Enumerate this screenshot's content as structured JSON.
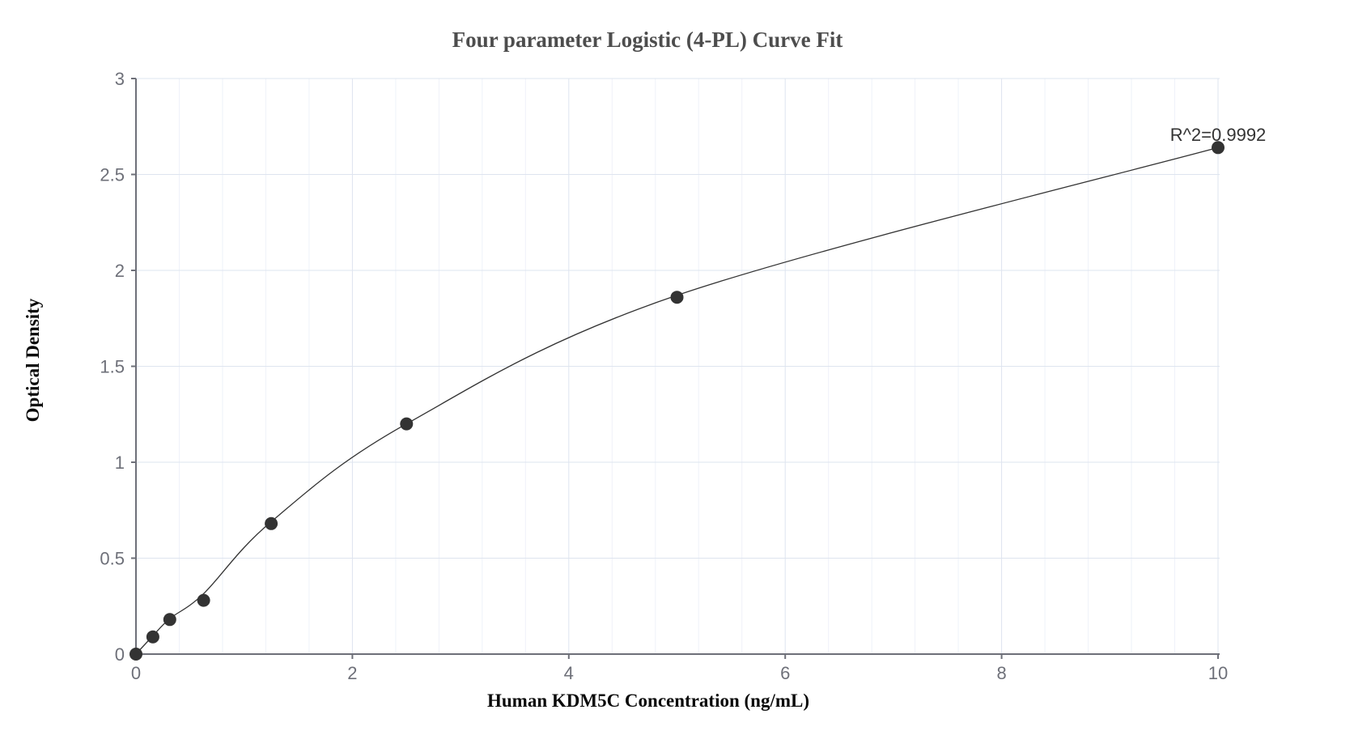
{
  "chart_data": {
    "type": "scatter",
    "title": "Four parameter Logistic (4-PL) Curve Fit",
    "xlabel": "Human KDM5C Concentration (ng/mL)",
    "ylabel": "Optical Density",
    "annotation": "R^2=0.9992",
    "x_ticks": [
      0,
      2,
      4,
      6,
      8,
      10
    ],
    "y_ticks": [
      0,
      0.5,
      1,
      1.5,
      2,
      2.5,
      3
    ],
    "xlim": [
      0,
      10
    ],
    "ylim": [
      0,
      3
    ],
    "grid": true,
    "minor_x_step": 0.4,
    "legend_position": "none",
    "points": [
      {
        "x": 0,
        "y": 0
      },
      {
        "x": 0.156,
        "y": 0.09
      },
      {
        "x": 0.3125,
        "y": 0.18
      },
      {
        "x": 0.625,
        "y": 0.28
      },
      {
        "x": 1.25,
        "y": 0.68
      },
      {
        "x": 2.5,
        "y": 1.2
      },
      {
        "x": 5,
        "y": 1.86
      },
      {
        "x": 10,
        "y": 2.64
      }
    ],
    "curve_anchors": [
      {
        "x": 0,
        "y": 0
      },
      {
        "x": 0.156,
        "y": 0.095
      },
      {
        "x": 0.3125,
        "y": 0.185
      },
      {
        "x": 0.625,
        "y": 0.315
      },
      {
        "x": 1.25,
        "y": 0.69
      },
      {
        "x": 2.5,
        "y": 1.2
      },
      {
        "x": 5,
        "y": 1.87
      },
      {
        "x": 10,
        "y": 2.64
      }
    ],
    "colors": {
      "point": "#333333",
      "curve": "#333333",
      "axis": "#6E7079",
      "tick_label": "#6E7079",
      "grid_major": "#DEE4EF",
      "grid_minor": "#EEF2F9",
      "title": "#4D4D4D",
      "axis_label": "#0A0A0A",
      "annotation": "#333333",
      "background": "#FFFFFF"
    }
  }
}
